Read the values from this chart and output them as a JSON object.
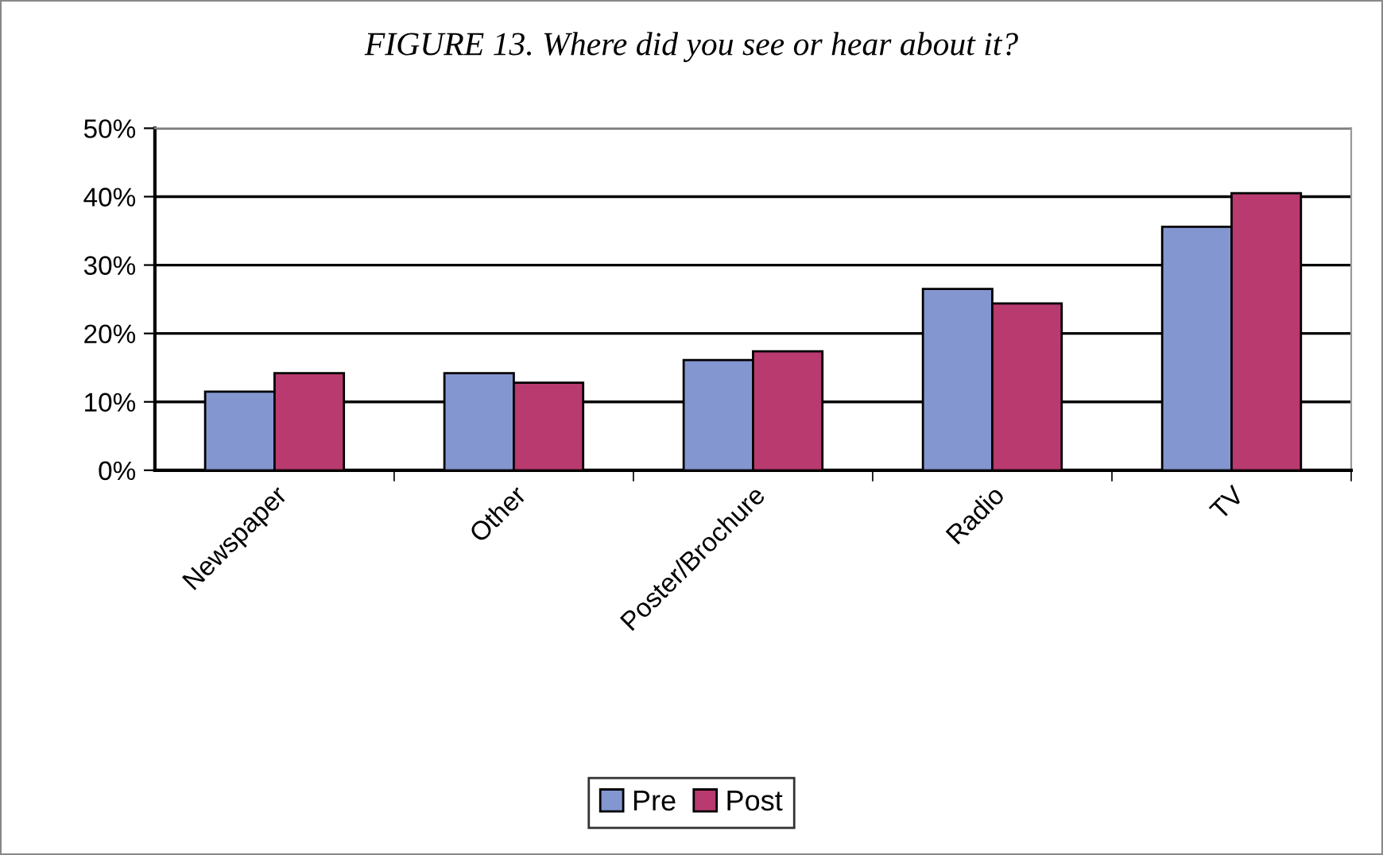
{
  "chart_data": {
    "type": "bar",
    "title": "FIGURE 13. Where did you see or hear about it?",
    "categories": [
      "Newspaper",
      "Other",
      "Poster/Brochure",
      "Radio",
      "TV"
    ],
    "series": [
      {
        "name": "Pre",
        "color": "#8496d0",
        "values": [
          11.5,
          14.2,
          16.1,
          26.5,
          35.6
        ]
      },
      {
        "name": "Post",
        "color": "#b83a6e",
        "values": [
          14.2,
          12.8,
          17.4,
          24.4,
          40.5
        ]
      }
    ],
    "ylim": [
      0,
      50
    ],
    "yticks": [
      {
        "value": 0,
        "label": "0%"
      },
      {
        "value": 10,
        "label": "10%"
      },
      {
        "value": 20,
        "label": "20%"
      },
      {
        "value": 30,
        "label": "30%"
      },
      {
        "value": 40,
        "label": "40%"
      },
      {
        "value": 50,
        "label": "50%"
      }
    ],
    "grid": "y",
    "legend": "bottom"
  }
}
